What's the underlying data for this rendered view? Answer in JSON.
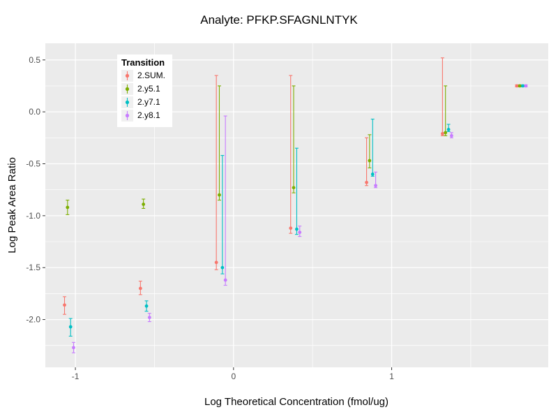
{
  "title": "Analyte: PFKP.SFAGNLNTYK",
  "chart_data": {
    "type": "scatter",
    "subtype": "pointrange-with-errorbars",
    "title": "Analyte: PFKP.SFAGNLNTYK",
    "xlabel": "Log Theoretical Concentration (fmol/ug)",
    "ylabel": "Log Peak Area Ratio",
    "xlim": [
      -1.19,
      1.99
    ],
    "ylim": [
      -2.46,
      0.66
    ],
    "x_ticks": [
      -1,
      0,
      1
    ],
    "x_tick_labels": [
      "-1",
      "0",
      "1"
    ],
    "x_minor_ticks": [
      -0.5,
      0.5,
      1.5
    ],
    "y_ticks": [
      0.5,
      0.0,
      -0.5,
      -1.0,
      -1.5,
      -2.0
    ],
    "y_tick_labels": [
      "0.5",
      "0.0",
      "-0.5",
      "-1.0",
      "-1.5",
      "-2.0"
    ],
    "y_minor_ticks": [
      0.25,
      -0.25,
      -0.75,
      -1.25,
      -1.75,
      -2.25
    ],
    "grid": true,
    "legend": {
      "title": "Transition",
      "position": "inside-top-left"
    },
    "colors": {
      "panel_bg": "#EBEBEB",
      "grid": "#FFFFFF",
      "axis_text": "#4D4D4D",
      "tick_mark": "#333333"
    },
    "x": [
      -1.04,
      -0.56,
      -0.08,
      0.39,
      0.87,
      1.35,
      1.82
    ],
    "series": [
      {
        "name": "2.SUM.",
        "color": "#F8766D",
        "y": [
          -1.86,
          -1.7,
          -1.45,
          -1.12,
          -0.68,
          -0.21,
          0.25
        ],
        "ymin": [
          -1.95,
          -1.76,
          -1.52,
          -1.17,
          -0.71,
          -0.23,
          0.24
        ],
        "ymax": [
          -1.78,
          -1.63,
          0.35,
          0.35,
          -0.25,
          0.52,
          0.26
        ]
      },
      {
        "name": "2.y5.1",
        "color": "#7CAE00",
        "y": [
          -0.92,
          -0.89,
          -0.8,
          -0.73,
          -0.47,
          -0.2,
          0.25
        ],
        "ymin": [
          -0.99,
          -0.93,
          -0.85,
          -0.78,
          -0.54,
          -0.23,
          0.24
        ],
        "ymax": [
          -0.85,
          -0.84,
          0.25,
          0.25,
          -0.22,
          0.25,
          0.26
        ]
      },
      {
        "name": "2.y7.1",
        "color": "#00BFC4",
        "y": [
          -2.07,
          -1.87,
          -1.5,
          -1.13,
          -0.6,
          -0.17,
          0.25
        ],
        "ymin": [
          -2.16,
          -1.92,
          -1.56,
          -1.18,
          -0.62,
          -0.19,
          0.24
        ],
        "ymax": [
          -1.99,
          -1.82,
          -0.42,
          -0.35,
          -0.07,
          -0.12,
          0.26
        ]
      },
      {
        "name": "2.y8.1",
        "color": "#C77CFF",
        "y": [
          -2.27,
          -1.98,
          -1.62,
          -1.16,
          -0.71,
          -0.23,
          0.25
        ],
        "ymin": [
          -2.32,
          -2.02,
          -1.67,
          -1.2,
          -0.73,
          -0.25,
          0.24
        ],
        "ymax": [
          -2.22,
          -1.94,
          -0.04,
          -1.1,
          -0.58,
          -0.2,
          0.26
        ]
      }
    ]
  }
}
